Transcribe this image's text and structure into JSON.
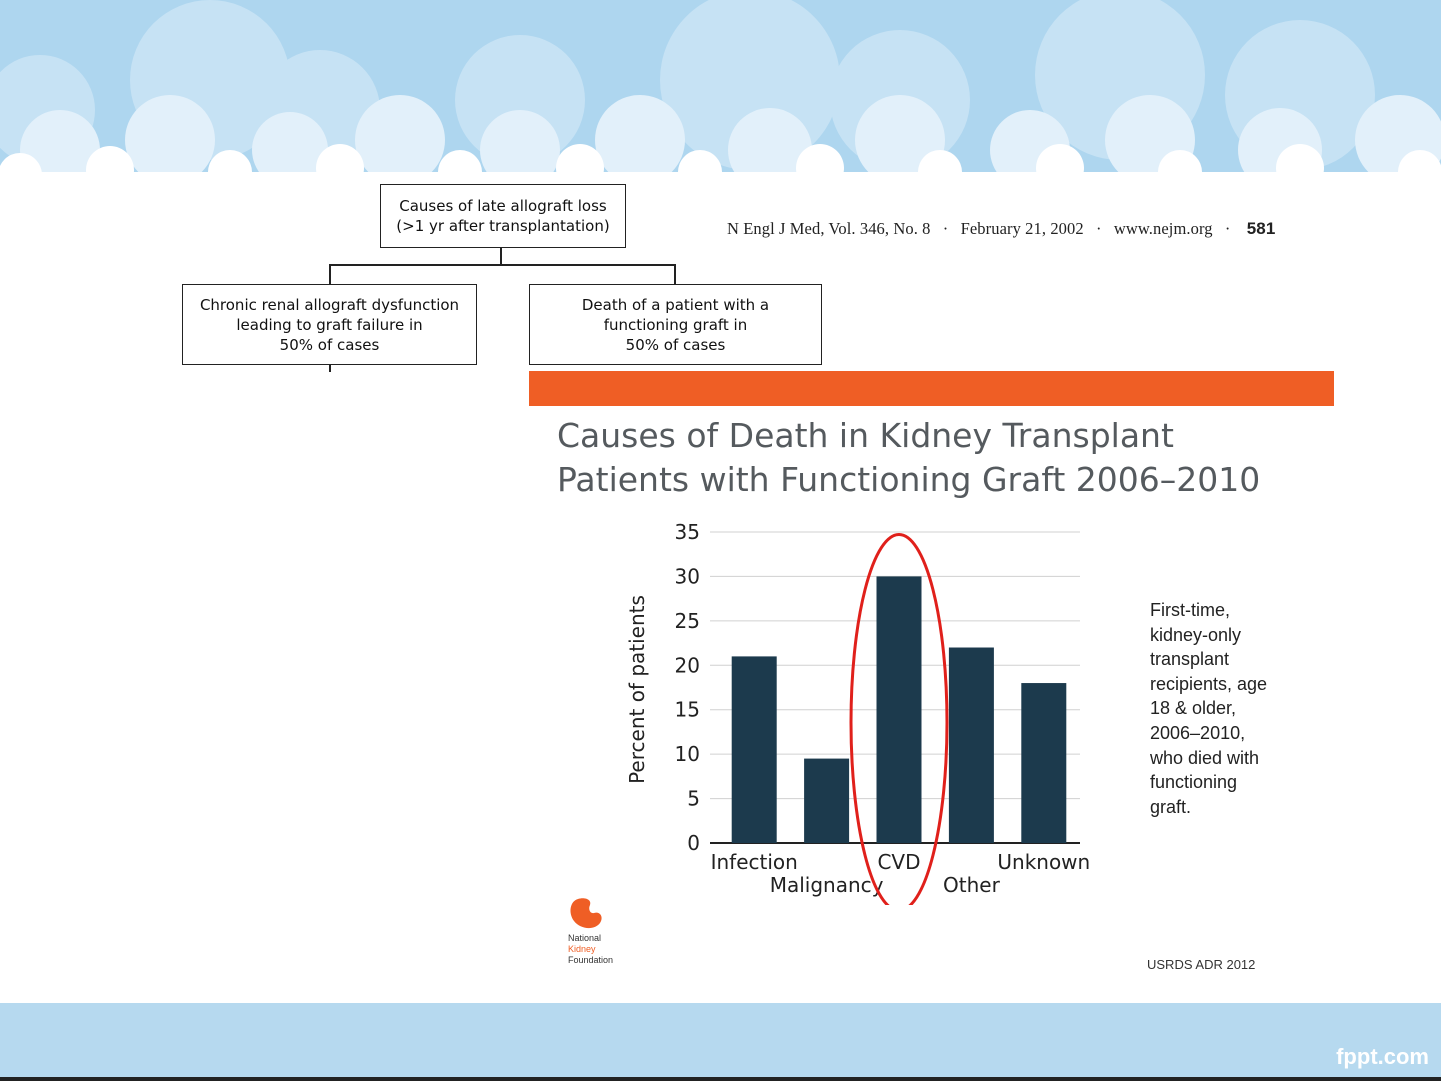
{
  "flowchart": {
    "top_box": [
      "Causes of late allograft loss",
      "(>1 yr after transplantation)"
    ],
    "left_box": [
      "Chronic renal allograft dysfunction",
      "leading to graft failure in",
      "50% of cases"
    ],
    "right_box": [
      "Death of a patient with a",
      "functioning graft in",
      "50% of cases"
    ]
  },
  "citation": {
    "journal": "N Engl J Med, Vol. 346, No. 8",
    "date": "February 21, 2002",
    "site": "www.nejm.org",
    "separator": "·",
    "page": "581"
  },
  "chart_title": [
    "Causes of Death in Kidney Transplant",
    "Patients with Functioning Graft 2006–2010"
  ],
  "chart_data": {
    "type": "bar",
    "title": "Causes of Death in Kidney Transplant Patients with Functioning Graft 2006–2010",
    "categories": [
      "Infection",
      "Malignancy",
      "CVD",
      "Other",
      "Unknown"
    ],
    "values": [
      21,
      9.5,
      30,
      22,
      18
    ],
    "xlabel": "",
    "ylabel": "Percent of patients",
    "ylim": [
      0,
      35
    ],
    "yticks": [
      0,
      5,
      10,
      15,
      20,
      25,
      30,
      35
    ],
    "grid": true,
    "highlight": "CVD",
    "bar_color": "#1c3a4d",
    "highlight_color": "#e0201b"
  },
  "side_note": [
    "First-time,",
    "kidney-only",
    "transplant",
    "recipients, age",
    "18 & older,",
    "2006–2010,",
    "who died with",
    "functioning",
    "graft."
  ],
  "logo": {
    "lines": [
      "National",
      "Kidney",
      "Foundation"
    ],
    "color": "#ef5e25"
  },
  "source": "USRDS ADR 2012",
  "brand": "fppt.com",
  "colors": {
    "accent_bar": "#ef5e25",
    "sky": "#b6d9ef"
  }
}
